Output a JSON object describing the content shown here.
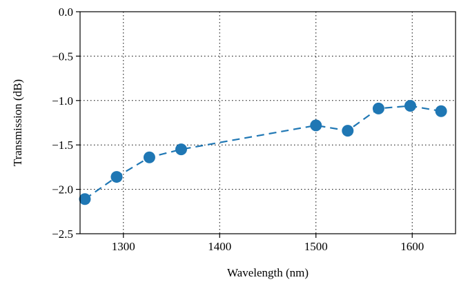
{
  "chart_data": {
    "type": "line",
    "title": "",
    "xlabel": "Wavelength (nm)",
    "ylabel": "Transmission (dB)",
    "xlim": [
      1255,
      1645
    ],
    "ylim": [
      -2.5,
      0.0
    ],
    "x_ticks": [
      1300,
      1400,
      1500,
      1600
    ],
    "y_ticks": [
      0.0,
      -0.5,
      -1.0,
      -1.5,
      -2.0,
      -2.5
    ],
    "x_tick_labels": [
      "1300",
      "1400",
      "1500",
      "1600"
    ],
    "y_tick_labels": [
      "0.0",
      "−0.5",
      "−1.0",
      "−1.5",
      "−2.0",
      "−2.5"
    ],
    "grid": true,
    "grid_style": "dotted",
    "line_style": "dashed",
    "marker": "circle",
    "series_color": "#1f77b4",
    "series": [
      {
        "x": [
          1260,
          1293,
          1327,
          1360,
          1500,
          1533,
          1565,
          1598,
          1630
        ],
        "y": [
          -2.11,
          -1.86,
          -1.64,
          -1.55,
          -1.28,
          -1.34,
          -1.09,
          -1.06,
          -1.12
        ]
      }
    ]
  }
}
